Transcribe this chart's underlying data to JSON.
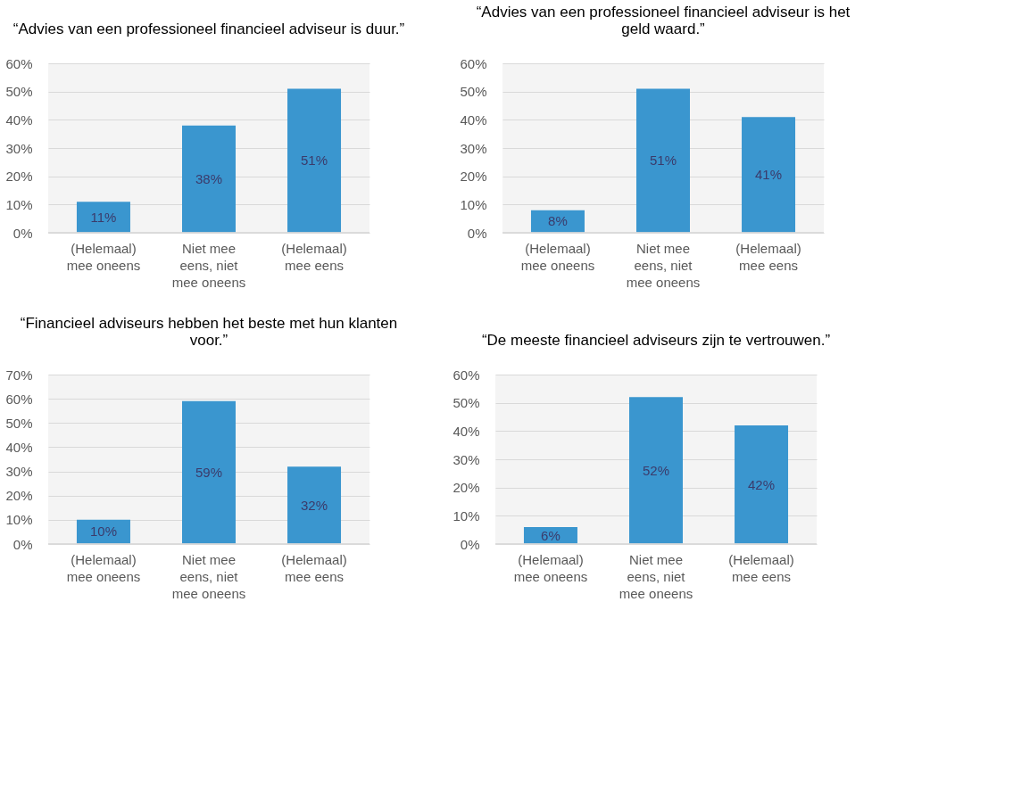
{
  "chart_data": [
    {
      "type": "bar",
      "title": "“Advies van een professioneel financieel adviseur is duur.”",
      "categories": [
        "(Helemaal)\nmee oneens",
        "Niet mee\neens, niet\nmee oneens",
        "(Helemaal)\nmee eens"
      ],
      "values": [
        11,
        38,
        51
      ],
      "value_labels": [
        "11%",
        "38%",
        "51%"
      ],
      "color": "#3a96cf",
      "ylim": [
        0,
        60
      ],
      "yticks": [
        {
          "value": 0,
          "label": "0%"
        },
        {
          "value": 10,
          "label": "10%"
        },
        {
          "value": 20,
          "label": "20%"
        },
        {
          "value": 30,
          "label": "30%"
        },
        {
          "value": 40,
          "label": "40%"
        },
        {
          "value": 50,
          "label": "50%"
        },
        {
          "value": 60,
          "label": "60%"
        }
      ],
      "grid": "y"
    },
    {
      "type": "bar",
      "title": "“Advies van een professioneel financieel adviseur is het\ngeld waard.”",
      "categories": [
        "(Helemaal)\nmee oneens",
        "Niet mee\neens, niet\nmee oneens",
        "(Helemaal)\nmee eens"
      ],
      "values": [
        8,
        51,
        41
      ],
      "value_labels": [
        "8%",
        "51%",
        "41%"
      ],
      "color": "#3a96cf",
      "ylim": [
        0,
        60
      ],
      "yticks": [
        {
          "value": 0,
          "label": "0%"
        },
        {
          "value": 10,
          "label": "10%"
        },
        {
          "value": 20,
          "label": "20%"
        },
        {
          "value": 30,
          "label": "30%"
        },
        {
          "value": 40,
          "label": "40%"
        },
        {
          "value": 50,
          "label": "50%"
        },
        {
          "value": 60,
          "label": "60%"
        }
      ],
      "grid": "y"
    },
    {
      "type": "bar",
      "title": "“Financieel adviseurs hebben het beste met hun klanten\nvoor.”",
      "categories": [
        "(Helemaal)\nmee oneens",
        "Niet mee\neens, niet\nmee oneens",
        "(Helemaal)\nmee eens"
      ],
      "values": [
        10,
        59,
        32
      ],
      "value_labels": [
        "10%",
        "59%",
        "32%"
      ],
      "color": "#3a96cf",
      "ylim": [
        0,
        70
      ],
      "yticks": [
        {
          "value": 0,
          "label": "0%"
        },
        {
          "value": 10,
          "label": "10%"
        },
        {
          "value": 20,
          "label": "20%"
        },
        {
          "value": 30,
          "label": "30%"
        },
        {
          "value": 40,
          "label": "40%"
        },
        {
          "value": 50,
          "label": "50%"
        },
        {
          "value": 60,
          "label": "60%"
        },
        {
          "value": 70,
          "label": "70%"
        }
      ],
      "grid": "y"
    },
    {
      "type": "bar",
      "title": "“De meeste financieel adviseurs zijn te vertrouwen.”",
      "categories": [
        "(Helemaal)\nmee oneens",
        "Niet mee\neens, niet\nmee oneens",
        "(Helemaal)\nmee eens"
      ],
      "values": [
        6,
        52,
        42
      ],
      "value_labels": [
        "6%",
        "52%",
        "42%"
      ],
      "color": "#3a96cf",
      "ylim": [
        0,
        60
      ],
      "yticks": [
        {
          "value": 0,
          "label": "0%"
        },
        {
          "value": 10,
          "label": "10%"
        },
        {
          "value": 20,
          "label": "20%"
        },
        {
          "value": 30,
          "label": "30%"
        },
        {
          "value": 40,
          "label": "40%"
        },
        {
          "value": 50,
          "label": "50%"
        },
        {
          "value": 60,
          "label": "60%"
        }
      ],
      "grid": "y"
    }
  ]
}
